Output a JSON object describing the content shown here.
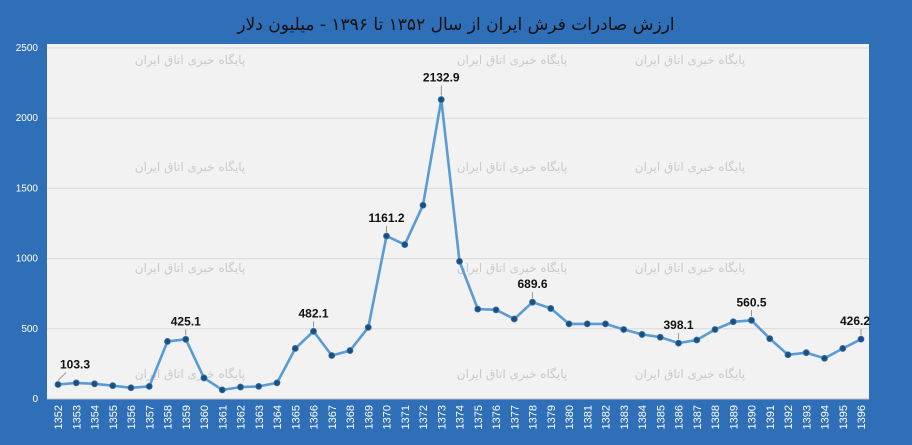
{
  "chart_data": {
    "type": "line",
    "title": "ارزش صادرات فرش ایران از سال ۱۳۵۲ تا ۱۳۹۶ - میلیون دلار",
    "watermark": "پایگاه خبری اتاق ایران",
    "xlabel": "",
    "ylabel": "",
    "ylim": [
      0,
      2500
    ],
    "yticks": [
      0,
      500,
      1000,
      1500,
      2000,
      2500
    ],
    "grid": true,
    "legend": "none",
    "line_color": "#5b9bd5",
    "marker_color": "#1f4e79",
    "categories": [
      "1352",
      "1353",
      "1354",
      "1355",
      "1356",
      "1357",
      "1358",
      "1359",
      "1360",
      "1361",
      "1362",
      "1363",
      "1364",
      "1365",
      "1366",
      "1367",
      "1368",
      "1369",
      "1370",
      "1371",
      "1372",
      "1373",
      "1374",
      "1375",
      "1376",
      "1377",
      "1378",
      "1379",
      "1380",
      "1381",
      "1382",
      "1383",
      "1384",
      "1385",
      "1386",
      "1387",
      "1388",
      "1389",
      "1390",
      "1391",
      "1392",
      "1393",
      "1394",
      "1395",
      "1396"
    ],
    "values": [
      103.3,
      115,
      108,
      95,
      80,
      90,
      410,
      425.1,
      150,
      65,
      85,
      90,
      115,
      360,
      482.1,
      310,
      345,
      510,
      1161.2,
      1100,
      1380,
      2132.9,
      980,
      640,
      635,
      570,
      689.6,
      645,
      535,
      535,
      535,
      495,
      460,
      440,
      398.1,
      420,
      495,
      550,
      560.5,
      430,
      315,
      330,
      290,
      360,
      426.2
    ],
    "data_labels": [
      {
        "index": 0,
        "text": "103.3"
      },
      {
        "index": 7,
        "text": "425.1"
      },
      {
        "index": 14,
        "text": "482.1"
      },
      {
        "index": 18,
        "text": "1161.2"
      },
      {
        "index": 21,
        "text": "2132.9"
      },
      {
        "index": 26,
        "text": "689.6"
      },
      {
        "index": 34,
        "text": "398.1"
      },
      {
        "index": 38,
        "text": "560.5"
      },
      {
        "index": 44,
        "text": "426.2"
      }
    ]
  }
}
